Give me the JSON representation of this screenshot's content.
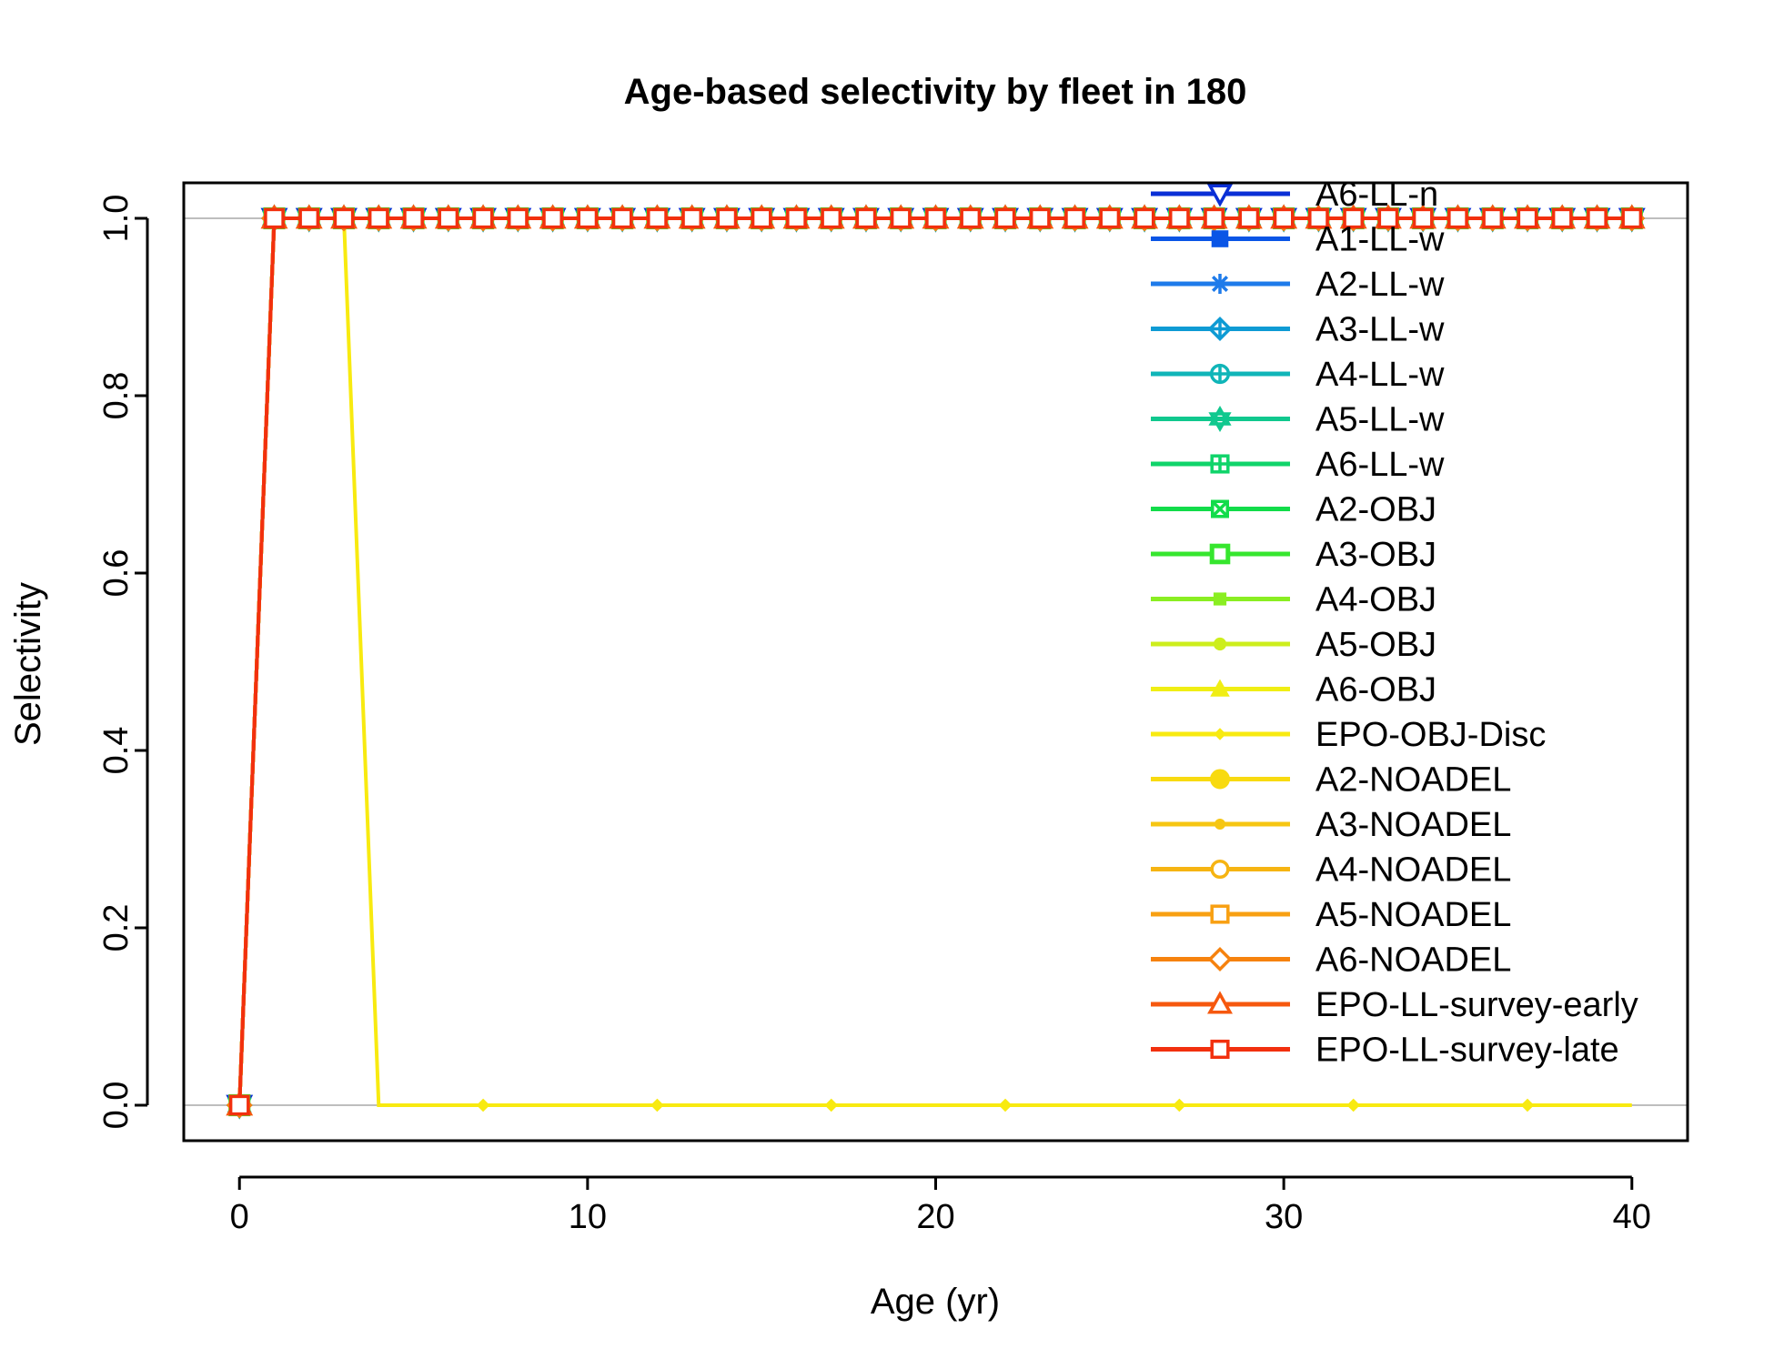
{
  "chart_data": {
    "type": "line",
    "title": "Age-based selectivity by fleet in 180",
    "xlabel": "Age (yr)",
    "ylabel": "Selectivity",
    "xlim": [
      -1.6,
      41.6
    ],
    "ylim": [
      -0.04,
      1.04
    ],
    "x_ticks": [
      0,
      10,
      20,
      30,
      40
    ],
    "y_ticks": [
      0.0,
      0.2,
      0.4,
      0.6,
      0.8,
      1.0
    ],
    "x_tick_labels": [
      "0",
      "10",
      "20",
      "30",
      "40"
    ],
    "y_tick_labels": [
      "0.0",
      "0.2",
      "0.4",
      "0.6",
      "0.8",
      "1.0"
    ],
    "grid": "horizontal lines at 0 and 1",
    "legend_position": "top-right",
    "ages": [
      0,
      1,
      2,
      3,
      4,
      5,
      6,
      7,
      8,
      9,
      10,
      11,
      12,
      13,
      14,
      15,
      16,
      17,
      18,
      19,
      20,
      21,
      22,
      23,
      24,
      25,
      26,
      27,
      28,
      29,
      30,
      31,
      32,
      33,
      34,
      35,
      36,
      37,
      38,
      39,
      40
    ],
    "series": [
      {
        "name": "A6-LL-n",
        "color": "#0A2FD6",
        "marker": "triangle-down",
        "pattern": "step",
        "step_age": 1
      },
      {
        "name": "A1-LL-w",
        "color": "#0A55E6",
        "marker": "square-filled",
        "pattern": "step",
        "step_age": 1
      },
      {
        "name": "A2-LL-w",
        "color": "#1E7BEA",
        "marker": "asterisk",
        "pattern": "step",
        "step_age": 1
      },
      {
        "name": "A3-LL-w",
        "color": "#0E9BD4",
        "marker": "diamond-plus",
        "pattern": "step",
        "step_age": 1
      },
      {
        "name": "A4-LL-w",
        "color": "#10B5B8",
        "marker": "circle-plus",
        "pattern": "step",
        "step_age": 1
      },
      {
        "name": "A5-LL-w",
        "color": "#10C88E",
        "marker": "star-of-david",
        "pattern": "step",
        "step_age": 1
      },
      {
        "name": "A6-LL-w",
        "color": "#10D46A",
        "marker": "square-plus",
        "pattern": "step",
        "step_age": 1
      },
      {
        "name": "A2-OBJ",
        "color": "#12DC4A",
        "marker": "square-x",
        "pattern": "step",
        "step_age": 1
      },
      {
        "name": "A3-OBJ",
        "color": "#36E62E",
        "marker": "square-open-bold",
        "pattern": "step",
        "step_age": 1
      },
      {
        "name": "A4-OBJ",
        "color": "#8AEE22",
        "marker": "square-filled-small",
        "pattern": "step",
        "step_age": 1
      },
      {
        "name": "A5-OBJ",
        "color": "#CDEE1C",
        "marker": "circle-filled-small",
        "pattern": "step",
        "step_age": 1
      },
      {
        "name": "A6-OBJ",
        "color": "#F0EE14",
        "marker": "triangle-filled",
        "pattern": "step",
        "step_age": 1
      },
      {
        "name": "EPO-OBJ-Disc",
        "color": "#F8EA10",
        "marker": "diamond-filled-small",
        "pattern": "pulse",
        "step_age": 1,
        "drop_age": 4
      },
      {
        "name": "A2-NOADEL",
        "color": "#F8DA10",
        "marker": "circle-filled",
        "pattern": "step",
        "step_age": 1
      },
      {
        "name": "A3-NOADEL",
        "color": "#F6C612",
        "marker": "dot",
        "pattern": "step",
        "step_age": 1
      },
      {
        "name": "A4-NOADEL",
        "color": "#F6B412",
        "marker": "circle-open",
        "pattern": "step",
        "step_age": 1
      },
      {
        "name": "A5-NOADEL",
        "color": "#F8A012",
        "marker": "square-open",
        "pattern": "step",
        "step_age": 1
      },
      {
        "name": "A6-NOADEL",
        "color": "#F6820E",
        "marker": "diamond-open",
        "pattern": "step",
        "step_age": 1
      },
      {
        "name": "EPO-LL-survey-early",
        "color": "#F6580E",
        "marker": "triangle-open",
        "pattern": "step",
        "step_age": 1
      },
      {
        "name": "EPO-LL-survey-late",
        "color": "#F2300E",
        "marker": "square-open",
        "pattern": "step",
        "step_age": 1
      }
    ]
  }
}
